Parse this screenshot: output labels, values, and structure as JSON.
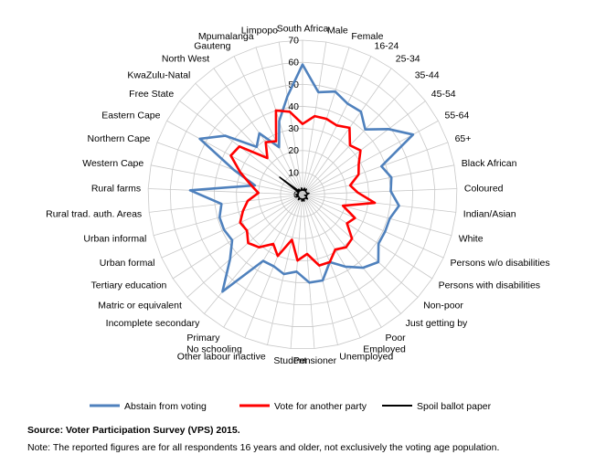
{
  "chart_data": {
    "type": "radar",
    "title": "",
    "categories": [
      "South Africa",
      "Male",
      "Female",
      "16-24",
      "25-34",
      "35-44",
      "45-54",
      "55-64",
      "65+",
      "Black African",
      "Coloured",
      "Indian/Asian",
      "White",
      "Persons w/o disabilities",
      "Persons with disabilities",
      "Non-poor",
      "Just getting by",
      "Poor",
      "Employed",
      "Unemployed",
      "Pensioner",
      "Student",
      "Other labour inactive",
      "No schooling",
      "Primary",
      "Incomplete secondary",
      "Matric or equivalent",
      "Tertiary education",
      "Urban formal",
      "Urban informal",
      "Rural trad. auth. Areas",
      "Rural farms",
      "Western Cape",
      "Northern Cape",
      "Eastern Cape",
      "Free State",
      "KwaZulu-Natal",
      "North West",
      "Gauteng",
      "Mpumalanga",
      "Limpopo"
    ],
    "rlim": [
      0,
      70
    ],
    "r_ticks": [
      0,
      10,
      20,
      30,
      40,
      50,
      60,
      70
    ],
    "series": [
      {
        "name": "Abstain from voting",
        "color": "#4f81bd",
        "values": [
          59,
          47,
          49,
          46,
          46,
          41,
          49,
          57,
          38,
          41,
          40,
          44,
          41,
          41,
          41,
          46,
          43,
          38,
          33,
          40,
          40,
          35,
          37,
          35,
          35,
          57,
          44,
          38,
          39,
          39,
          37,
          51,
          22,
          33,
          53,
          44,
          30,
          34,
          24,
          35,
          45
        ]
      },
      {
        "name": "Vote for another party",
        "color": "#ff0000",
        "values": [
          32,
          36,
          36,
          35,
          37,
          31,
          33,
          29,
          27,
          22,
          25,
          33,
          19,
          26,
          24,
          30,
          31,
          29,
          33,
          33,
          27,
          30,
          21,
          30,
          26,
          31,
          33,
          30,
          31,
          28,
          25,
          20,
          24,
          30,
          37,
          36,
          23,
          29,
          27,
          40,
          38
        ]
      },
      {
        "name": "Spoil ballot paper",
        "color": "#000000",
        "values": [
          2,
          2,
          3,
          2,
          3,
          2,
          2,
          2,
          2,
          3,
          2,
          2,
          1,
          2,
          2,
          3,
          2,
          2,
          2,
          3,
          2,
          3,
          2,
          2,
          2,
          3,
          2,
          2,
          2,
          3,
          2,
          3,
          2,
          2,
          2,
          13,
          2,
          3,
          2,
          2,
          3
        ]
      }
    ],
    "legend_position": "bottom",
    "grid": true
  },
  "source": "Source: Voter Participation Survey (VPS) 2015.",
  "footnote": "Note: The reported figures are for all respondents 16 years and older, not exclusively the voting age population."
}
